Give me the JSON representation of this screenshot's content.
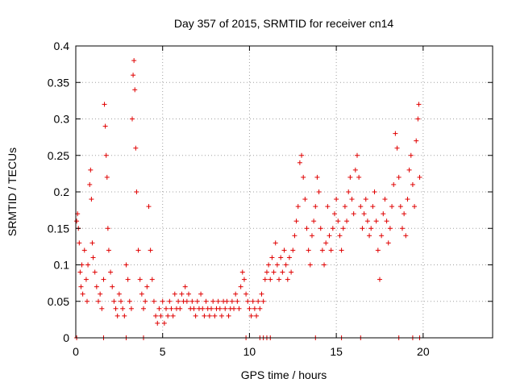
{
  "chart_data": {
    "type": "scatter",
    "title": "Day 357 of 2015, SRMTID for receiver cn14",
    "xlabel": "GPS time / hours",
    "ylabel": "SRMTID / TECUs",
    "xlim": [
      0,
      24
    ],
    "ylim": [
      0,
      0.4
    ],
    "xticks": [
      0,
      5,
      10,
      15,
      20
    ],
    "xtick_labels": [
      "0",
      "5",
      "10",
      "15",
      "20"
    ],
    "yticks": [
      0,
      0.05,
      0.1,
      0.15,
      0.2,
      0.25,
      0.3,
      0.35,
      0.4
    ],
    "ytick_labels": [
      "0",
      "0.05",
      "0.1",
      "0.15",
      "0.2",
      "0.25",
      "0.3",
      "0.35",
      "0.4"
    ],
    "grid": true,
    "marker": "+",
    "color": "#e00000",
    "series": [
      {
        "name": "cn14",
        "points": [
          [
            0.05,
            0.16
          ],
          [
            0.1,
            0.17
          ],
          [
            0.15,
            0.15
          ],
          [
            0.2,
            0.13
          ],
          [
            0.25,
            0.09
          ],
          [
            0.3,
            0.07
          ],
          [
            0.35,
            0.1
          ],
          [
            0.4,
            0.06
          ],
          [
            0.5,
            0.12
          ],
          [
            0.6,
            0.08
          ],
          [
            0.65,
            0.05
          ],
          [
            0.7,
            0.1
          ],
          [
            0.8,
            0.21
          ],
          [
            0.85,
            0.23
          ],
          [
            0.9,
            0.19
          ],
          [
            0.95,
            0.13
          ],
          [
            1.0,
            0.11
          ],
          [
            1.1,
            0.09
          ],
          [
            1.2,
            0.07
          ],
          [
            1.3,
            0.05
          ],
          [
            1.4,
            0.06
          ],
          [
            1.5,
            0.04
          ],
          [
            1.6,
            0.08
          ],
          [
            1.65,
            0.32
          ],
          [
            1.7,
            0.29
          ],
          [
            1.75,
            0.25
          ],
          [
            1.8,
            0.22
          ],
          [
            1.85,
            0.15
          ],
          [
            1.9,
            0.12
          ],
          [
            2.0,
            0.09
          ],
          [
            2.1,
            0.07
          ],
          [
            2.2,
            0.05
          ],
          [
            2.3,
            0.04
          ],
          [
            2.4,
            0.03
          ],
          [
            2.5,
            0.06
          ],
          [
            2.6,
            0.05
          ],
          [
            2.7,
            0.04
          ],
          [
            2.8,
            0.03
          ],
          [
            2.9,
            0.1
          ],
          [
            3.0,
            0.08
          ],
          [
            3.1,
            0.05
          ],
          [
            3.2,
            0.04
          ],
          [
            3.25,
            0.3
          ],
          [
            3.3,
            0.36
          ],
          [
            3.35,
            0.38
          ],
          [
            3.4,
            0.34
          ],
          [
            3.45,
            0.26
          ],
          [
            3.5,
            0.2
          ],
          [
            3.6,
            0.12
          ],
          [
            3.7,
            0.08
          ],
          [
            3.8,
            0.06
          ],
          [
            3.9,
            0.04
          ],
          [
            4.0,
            0.05
          ],
          [
            4.1,
            0.07
          ],
          [
            4.2,
            0.18
          ],
          [
            4.3,
            0.12
          ],
          [
            4.4,
            0.08
          ],
          [
            4.5,
            0.05
          ],
          [
            4.6,
            0.03
          ],
          [
            4.7,
            0.02
          ],
          [
            4.8,
            0.04
          ],
          [
            4.9,
            0.03
          ],
          [
            5.0,
            0.05
          ],
          [
            5.1,
            0.02
          ],
          [
            5.2,
            0.04
          ],
          [
            5.3,
            0.03
          ],
          [
            5.4,
            0.05
          ],
          [
            5.5,
            0.04
          ],
          [
            5.6,
            0.03
          ],
          [
            5.7,
            0.06
          ],
          [
            5.8,
            0.04
          ],
          [
            5.9,
            0.05
          ],
          [
            6.0,
            0.04
          ],
          [
            6.1,
            0.06
          ],
          [
            6.2,
            0.05
          ],
          [
            6.3,
            0.07
          ],
          [
            6.4,
            0.05
          ],
          [
            6.5,
            0.06
          ],
          [
            6.6,
            0.04
          ],
          [
            6.7,
            0.05
          ],
          [
            6.8,
            0.04
          ],
          [
            6.9,
            0.03
          ],
          [
            7.0,
            0.05
          ],
          [
            7.1,
            0.04
          ],
          [
            7.2,
            0.06
          ],
          [
            7.3,
            0.04
          ],
          [
            7.4,
            0.03
          ],
          [
            7.5,
            0.05
          ],
          [
            7.6,
            0.04
          ],
          [
            7.7,
            0.03
          ],
          [
            7.8,
            0.04
          ],
          [
            7.9,
            0.05
          ],
          [
            8.0,
            0.03
          ],
          [
            8.1,
            0.04
          ],
          [
            8.2,
            0.05
          ],
          [
            8.3,
            0.04
          ],
          [
            8.4,
            0.03
          ],
          [
            8.5,
            0.05
          ],
          [
            8.6,
            0.04
          ],
          [
            8.7,
            0.05
          ],
          [
            8.8,
            0.03
          ],
          [
            8.9,
            0.04
          ],
          [
            9.0,
            0.05
          ],
          [
            9.1,
            0.04
          ],
          [
            9.2,
            0.06
          ],
          [
            9.3,
            0.05
          ],
          [
            9.4,
            0.04
          ],
          [
            9.5,
            0.07
          ],
          [
            9.6,
            0.09
          ],
          [
            9.7,
            0.08
          ],
          [
            9.8,
            0.06
          ],
          [
            9.9,
            0.05
          ],
          [
            10.0,
            0.04
          ],
          [
            10.1,
            0.03
          ],
          [
            10.2,
            0.05
          ],
          [
            10.3,
            0.04
          ],
          [
            10.4,
            0.03
          ],
          [
            10.5,
            0.05
          ],
          [
            10.6,
            0.04
          ],
          [
            10.7,
            0.06
          ],
          [
            10.8,
            0.05
          ],
          [
            10.9,
            0.08
          ],
          [
            11.0,
            0.09
          ],
          [
            11.1,
            0.1
          ],
          [
            11.2,
            0.08
          ],
          [
            11.3,
            0.11
          ],
          [
            11.4,
            0.09
          ],
          [
            11.5,
            0.13
          ],
          [
            11.6,
            0.1
          ],
          [
            11.7,
            0.08
          ],
          [
            11.8,
            0.11
          ],
          [
            11.9,
            0.09
          ],
          [
            12.0,
            0.12
          ],
          [
            12.1,
            0.1
          ],
          [
            12.2,
            0.08
          ],
          [
            12.3,
            0.11
          ],
          [
            12.4,
            0.09
          ],
          [
            12.5,
            0.12
          ],
          [
            12.6,
            0.14
          ],
          [
            12.7,
            0.16
          ],
          [
            12.8,
            0.18
          ],
          [
            12.9,
            0.24
          ],
          [
            13.0,
            0.25
          ],
          [
            13.1,
            0.22
          ],
          [
            13.2,
            0.19
          ],
          [
            13.3,
            0.15
          ],
          [
            13.4,
            0.12
          ],
          [
            13.5,
            0.1
          ],
          [
            13.6,
            0.14
          ],
          [
            13.7,
            0.16
          ],
          [
            13.8,
            0.18
          ],
          [
            13.9,
            0.22
          ],
          [
            14.0,
            0.2
          ],
          [
            14.1,
            0.15
          ],
          [
            14.2,
            0.12
          ],
          [
            14.3,
            0.1
          ],
          [
            14.4,
            0.13
          ],
          [
            14.5,
            0.18
          ],
          [
            14.6,
            0.14
          ],
          [
            14.7,
            0.12
          ],
          [
            14.8,
            0.15
          ],
          [
            14.9,
            0.17
          ],
          [
            15.0,
            0.19
          ],
          [
            15.1,
            0.16
          ],
          [
            15.2,
            0.14
          ],
          [
            15.3,
            0.12
          ],
          [
            15.4,
            0.15
          ],
          [
            15.5,
            0.18
          ],
          [
            15.6,
            0.16
          ],
          [
            15.7,
            0.2
          ],
          [
            15.8,
            0.22
          ],
          [
            15.9,
            0.19
          ],
          [
            16.0,
            0.17
          ],
          [
            16.1,
            0.23
          ],
          [
            16.2,
            0.25
          ],
          [
            16.3,
            0.22
          ],
          [
            16.4,
            0.18
          ],
          [
            16.5,
            0.15
          ],
          [
            16.6,
            0.17
          ],
          [
            16.7,
            0.19
          ],
          [
            16.8,
            0.16
          ],
          [
            16.9,
            0.14
          ],
          [
            17.0,
            0.15
          ],
          [
            17.1,
            0.18
          ],
          [
            17.2,
            0.2
          ],
          [
            17.3,
            0.16
          ],
          [
            17.4,
            0.12
          ],
          [
            17.5,
            0.08
          ],
          [
            17.6,
            0.14
          ],
          [
            17.7,
            0.17
          ],
          [
            17.8,
            0.19
          ],
          [
            17.9,
            0.16
          ],
          [
            18.0,
            0.13
          ],
          [
            18.1,
            0.15
          ],
          [
            18.2,
            0.18
          ],
          [
            18.3,
            0.21
          ],
          [
            18.4,
            0.28
          ],
          [
            18.5,
            0.26
          ],
          [
            18.6,
            0.22
          ],
          [
            18.7,
            0.18
          ],
          [
            18.8,
            0.15
          ],
          [
            18.9,
            0.17
          ],
          [
            19.0,
            0.14
          ],
          [
            19.1,
            0.19
          ],
          [
            19.2,
            0.23
          ],
          [
            19.3,
            0.25
          ],
          [
            19.4,
            0.21
          ],
          [
            19.5,
            0.18
          ],
          [
            19.6,
            0.27
          ],
          [
            19.7,
            0.3
          ],
          [
            19.75,
            0.32
          ],
          [
            19.8,
            0.22
          ],
          [
            0.05,
            0
          ],
          [
            1.6,
            0
          ],
          [
            2.9,
            0
          ],
          [
            3.9,
            0
          ],
          [
            9.8,
            0
          ],
          [
            10.6,
            0
          ],
          [
            10.8,
            0
          ],
          [
            11.0,
            0
          ],
          [
            11.2,
            0
          ],
          [
            13.8,
            0
          ],
          [
            15.3,
            0
          ],
          [
            16.4,
            0
          ],
          [
            18.6,
            0
          ],
          [
            19.4,
            0
          ],
          [
            19.8,
            0
          ]
        ]
      }
    ]
  }
}
